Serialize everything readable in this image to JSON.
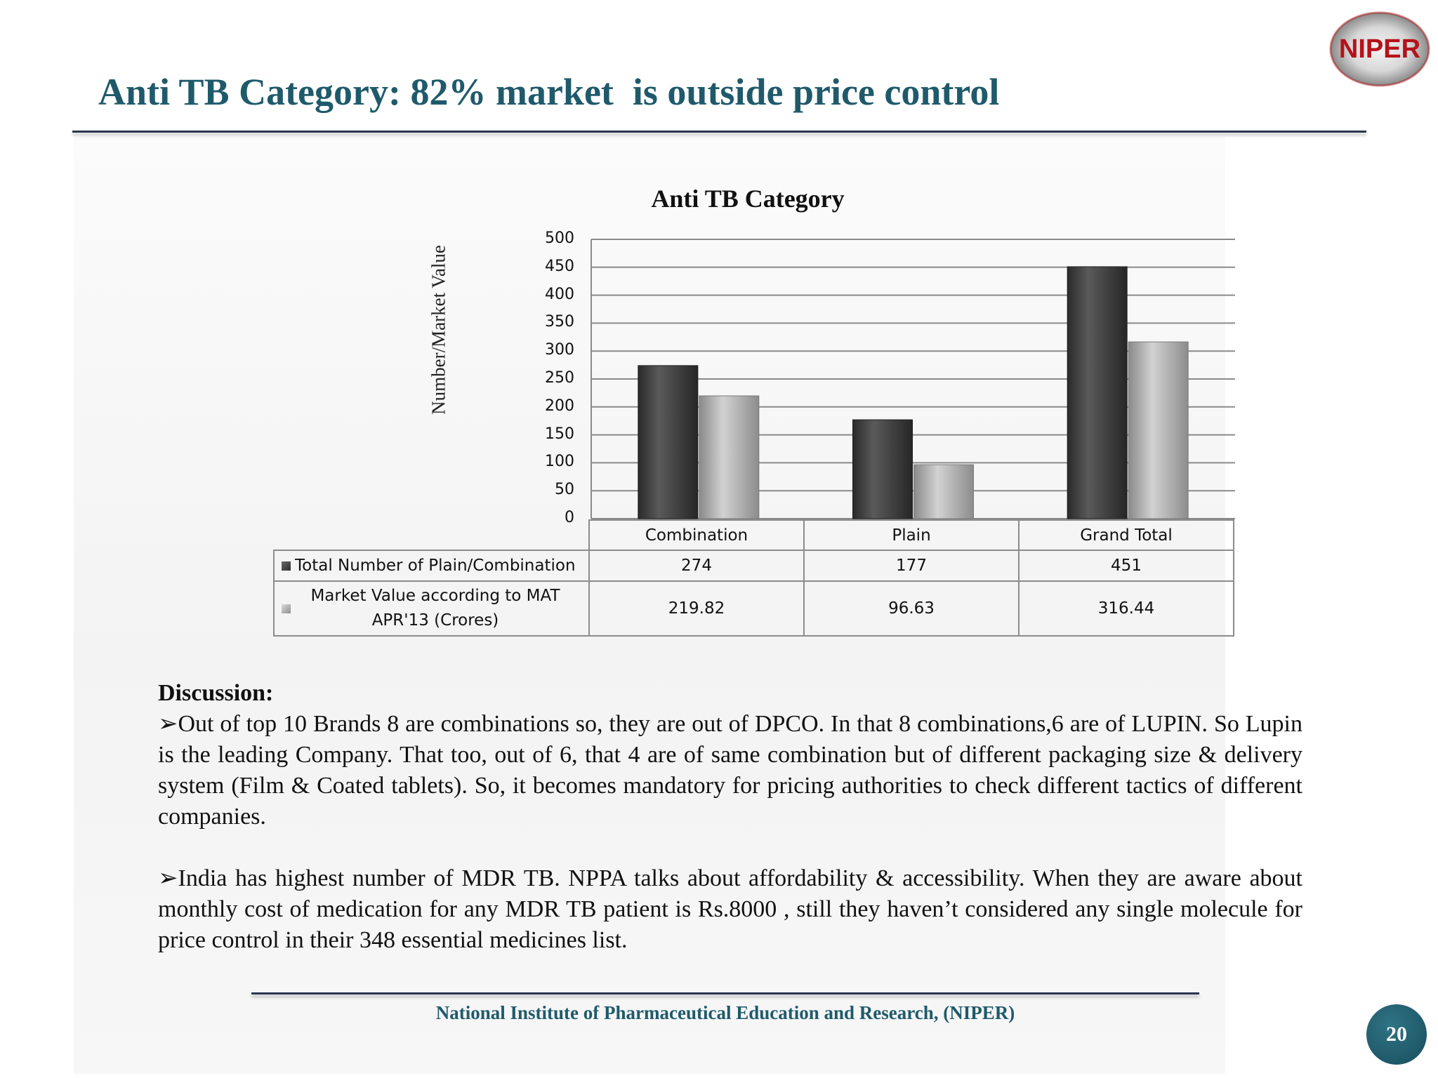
{
  "slide": {
    "title": "Anti TB Category: 82% market  is outside price control",
    "logo_text": "NIPER",
    "footer": "National Institute of Pharmaceutical Education and Research, (NIPER)",
    "page_number": "20"
  },
  "chart_data": {
    "type": "bar",
    "title": "Anti TB Category",
    "ylabel": "Number/Market Value",
    "xlabel": "",
    "categories": [
      "Combination",
      "Plain",
      "Grand Total"
    ],
    "series": [
      {
        "name": "Total Number of Plain/Combination",
        "values": [
          274,
          177,
          451
        ],
        "labels": [
          "274",
          "177",
          "451"
        ],
        "color": "#3c3c3c"
      },
      {
        "name": "Market Value according to MAT APR'13  (Crores)",
        "values": [
          219.82,
          96.63,
          316.44
        ],
        "labels": [
          "219.82",
          "96.63",
          "316.44"
        ],
        "color": "#b4b4b4"
      }
    ],
    "ylim": [
      0,
      500
    ],
    "yticks": [
      "0",
      "50",
      "100",
      "150",
      "200",
      "250",
      "300",
      "350",
      "400",
      "450",
      "500"
    ],
    "grid": true,
    "legend": "data table below chart"
  },
  "discussion": {
    "heading": "Discussion:",
    "bullet_marker": "➢",
    "points": [
      "Out of top 10 Brands 8 are combinations so, they are out of DPCO. In that 8 combinations,6 are of LUPIN. So Lupin is the leading Company. That too, out of 6, that 4 are of same combination but of different packaging size & delivery system (Film & Coated tablets). So, it becomes mandatory for pricing authorities to check different tactics of different companies.",
      "India has highest number of MDR TB. NPPA talks about affordability & accessibility. When they are aware about monthly cost of medication for any MDR TB patient is Rs.8000 , still they haven’t considered any single molecule for price control in their 348 essential medicines list."
    ]
  }
}
